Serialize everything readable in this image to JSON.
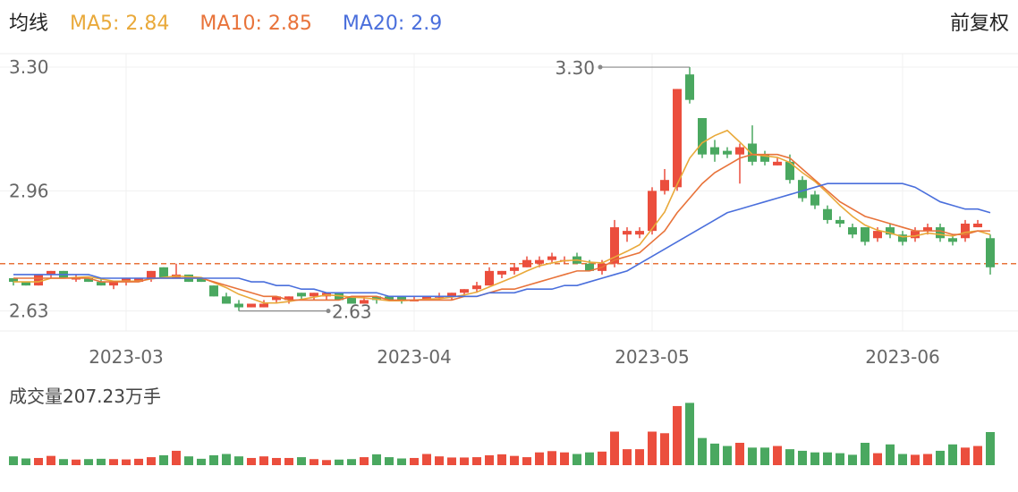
{
  "chart_data": {
    "type": "candlestick",
    "header": "均线",
    "adjust_label": "前复权",
    "ylim": [
      2.575,
      3.337
    ],
    "yticks": [
      {
        "value": 3.3,
        "label": "3.30"
      },
      2.96,
      2.63
    ],
    "grid": true,
    "up_color": "#eb4e3d",
    "down_color": "#4aa860",
    "categories": [
      null,
      null,
      null,
      null,
      null,
      null,
      null,
      null,
      null,
      "2023-03",
      null,
      null,
      null,
      null,
      null,
      null,
      null,
      null,
      null,
      null,
      null,
      null,
      null,
      null,
      null,
      null,
      null,
      null,
      null,
      null,
      null,
      null,
      "2023-04",
      null,
      null,
      null,
      null,
      null,
      null,
      null,
      null,
      null,
      null,
      null,
      null,
      null,
      null,
      null,
      null,
      null,
      null,
      "2023-05",
      null,
      null,
      null,
      null,
      null,
      null,
      null,
      null,
      null,
      null,
      null,
      null,
      null,
      null,
      null,
      null,
      null,
      null,
      null,
      "2023-06",
      null,
      null,
      null,
      null,
      null,
      null,
      null
    ],
    "open": [
      2.72,
      2.71,
      2.7,
      2.73,
      2.74,
      2.72,
      2.72,
      2.71,
      2.7,
      2.71,
      2.71,
      2.72,
      2.75,
      2.72,
      2.73,
      2.72,
      2.7,
      2.67,
      2.65,
      2.64,
      2.64,
      2.66,
      2.66,
      2.68,
      2.67,
      2.67,
      2.68,
      2.67,
      2.65,
      2.67,
      2.67,
      2.67,
      2.66,
      2.66,
      2.67,
      2.67,
      2.68,
      2.69,
      2.7,
      2.73,
      2.74,
      2.75,
      2.76,
      2.77,
      2.77,
      2.78,
      2.76,
      2.74,
      2.76,
      2.84,
      2.84,
      2.85,
      2.96,
      2.97,
      3.28,
      3.16,
      3.08,
      3.07,
      3.06,
      3.09,
      3.06,
      3.03,
      3.04,
      2.99,
      2.95,
      2.91,
      2.88,
      2.86,
      2.86,
      2.83,
      2.86,
      2.84,
      2.83,
      2.85,
      2.86,
      2.83,
      2.83,
      2.86,
      2.83
    ],
    "high": [
      2.72,
      2.71,
      2.73,
      2.74,
      2.74,
      2.73,
      2.72,
      2.72,
      2.71,
      2.72,
      2.72,
      2.74,
      2.75,
      2.76,
      2.73,
      2.72,
      2.7,
      2.68,
      2.66,
      2.65,
      2.66,
      2.67,
      2.67,
      2.68,
      2.68,
      2.68,
      2.68,
      2.67,
      2.67,
      2.67,
      2.67,
      2.67,
      2.67,
      2.67,
      2.68,
      2.68,
      2.69,
      2.71,
      2.75,
      2.74,
      2.76,
      2.78,
      2.78,
      2.79,
      2.78,
      2.79,
      2.77,
      2.77,
      2.88,
      2.86,
      2.86,
      2.97,
      3.02,
      3.24,
      3.3,
      3.16,
      3.1,
      3.08,
      3.09,
      3.14,
      3.07,
      3.05,
      3.06,
      3.0,
      2.96,
      2.92,
      2.89,
      2.87,
      2.86,
      2.86,
      2.87,
      2.85,
      2.86,
      2.87,
      2.87,
      2.84,
      2.88,
      2.88,
      2.84
    ],
    "low": [
      2.7,
      2.7,
      2.7,
      2.72,
      2.72,
      2.71,
      2.71,
      2.7,
      2.69,
      2.7,
      2.71,
      2.71,
      2.72,
      2.72,
      2.71,
      2.71,
      2.67,
      2.65,
      2.63,
      2.64,
      2.64,
      2.65,
      2.65,
      2.66,
      2.66,
      2.66,
      2.66,
      2.65,
      2.65,
      2.65,
      2.66,
      2.65,
      2.66,
      2.66,
      2.66,
      2.66,
      2.67,
      2.68,
      2.7,
      2.72,
      2.73,
      2.75,
      2.75,
      2.76,
      2.76,
      2.76,
      2.74,
      2.73,
      2.75,
      2.82,
      2.83,
      2.84,
      2.95,
      2.96,
      3.2,
      3.05,
      3.04,
      3.05,
      2.98,
      3.03,
      3.03,
      3.03,
      2.98,
      2.93,
      2.91,
      2.87,
      2.86,
      2.83,
      2.81,
      2.82,
      2.83,
      2.81,
      2.82,
      2.84,
      2.82,
      2.81,
      2.82,
      2.86,
      2.73
    ],
    "close": [
      2.71,
      2.7,
      2.73,
      2.74,
      2.72,
      2.72,
      2.71,
      2.7,
      2.71,
      2.72,
      2.72,
      2.74,
      2.72,
      2.73,
      2.71,
      2.71,
      2.67,
      2.65,
      2.64,
      2.65,
      2.65,
      2.67,
      2.67,
      2.67,
      2.68,
      2.68,
      2.66,
      2.65,
      2.66,
      2.66,
      2.66,
      2.66,
      2.66,
      2.67,
      2.67,
      2.68,
      2.69,
      2.7,
      2.74,
      2.74,
      2.75,
      2.77,
      2.77,
      2.78,
      2.77,
      2.76,
      2.74,
      2.76,
      2.86,
      2.85,
      2.85,
      2.96,
      2.99,
      3.24,
      3.21,
      3.06,
      3.06,
      3.06,
      3.08,
      3.04,
      3.04,
      3.04,
      2.99,
      2.94,
      2.92,
      2.88,
      2.87,
      2.84,
      2.82,
      2.85,
      2.84,
      2.82,
      2.85,
      2.86,
      2.83,
      2.82,
      2.87,
      2.87,
      2.75
    ],
    "series": [
      {
        "name": "MA5",
        "legend_label": "MA5: 2.84",
        "color": "#e9a93a",
        "values": [
          2.71,
          2.71,
          2.71,
          2.72,
          2.72,
          2.722,
          2.724,
          2.718,
          2.712,
          2.712,
          2.712,
          2.718,
          2.722,
          2.726,
          2.724,
          2.722,
          2.708,
          2.694,
          2.676,
          2.664,
          2.652,
          2.652,
          2.656,
          2.662,
          2.668,
          2.674,
          2.672,
          2.668,
          2.666,
          2.662,
          2.658,
          2.658,
          2.66,
          2.662,
          2.664,
          2.668,
          2.674,
          2.682,
          2.696,
          2.71,
          2.724,
          2.74,
          2.754,
          2.762,
          2.768,
          2.77,
          2.764,
          2.762,
          2.778,
          2.794,
          2.812,
          2.856,
          2.902,
          2.978,
          3.05,
          3.092,
          3.112,
          3.126,
          3.094,
          3.06,
          3.056,
          3.052,
          3.038,
          3.01,
          2.986,
          2.954,
          2.92,
          2.89,
          2.866,
          2.852,
          2.844,
          2.834,
          2.836,
          2.844,
          2.84,
          2.836,
          2.846,
          2.85,
          2.84
        ]
      },
      {
        "name": "MA10",
        "legend_label": "MA10: 2.85",
        "color": "#e8733a",
        "values": [
          2.72,
          2.72,
          2.72,
          2.72,
          2.72,
          2.72,
          2.72,
          2.71,
          2.71,
          2.71,
          2.71,
          2.72,
          2.72,
          2.72,
          2.72,
          2.72,
          2.71,
          2.7,
          2.69,
          2.68,
          2.67,
          2.67,
          2.66,
          2.66,
          2.66,
          2.66,
          2.66,
          2.67,
          2.67,
          2.67,
          2.66,
          2.66,
          2.66,
          2.66,
          2.66,
          2.66,
          2.67,
          2.67,
          2.68,
          2.69,
          2.69,
          2.7,
          2.71,
          2.72,
          2.73,
          2.74,
          2.74,
          2.75,
          2.77,
          2.78,
          2.79,
          2.82,
          2.85,
          2.9,
          2.94,
          2.98,
          3.01,
          3.03,
          3.05,
          3.06,
          3.06,
          3.06,
          3.05,
          3.02,
          2.99,
          2.96,
          2.93,
          2.91,
          2.89,
          2.88,
          2.87,
          2.86,
          2.85,
          2.85,
          2.85,
          2.84,
          2.84,
          2.85,
          2.85
        ]
      },
      {
        "name": "MA20",
        "legend_label": "MA20: 2.9",
        "color": "#4a6fdc",
        "values": [
          2.73,
          2.73,
          2.73,
          2.73,
          2.73,
          2.73,
          2.73,
          2.72,
          2.72,
          2.72,
          2.72,
          2.72,
          2.72,
          2.72,
          2.72,
          2.72,
          2.72,
          2.72,
          2.72,
          2.71,
          2.71,
          2.7,
          2.7,
          2.69,
          2.69,
          2.68,
          2.68,
          2.68,
          2.68,
          2.68,
          2.67,
          2.67,
          2.67,
          2.67,
          2.67,
          2.67,
          2.67,
          2.67,
          2.68,
          2.68,
          2.68,
          2.69,
          2.69,
          2.69,
          2.7,
          2.7,
          2.71,
          2.72,
          2.73,
          2.74,
          2.76,
          2.78,
          2.8,
          2.82,
          2.84,
          2.86,
          2.88,
          2.9,
          2.91,
          2.92,
          2.93,
          2.94,
          2.95,
          2.96,
          2.97,
          2.98,
          2.98,
          2.98,
          2.98,
          2.98,
          2.98,
          2.98,
          2.97,
          2.95,
          2.93,
          2.92,
          2.91,
          2.91,
          2.9
        ]
      }
    ],
    "ref_line": {
      "value": 2.76,
      "color": "#e8733a"
    },
    "annotations": [
      {
        "text": "3.30",
        "value": 3.3,
        "at": "high"
      },
      {
        "text": "2.63",
        "value": 2.63,
        "at": "low"
      }
    ],
    "volume_title": "成交量207.23万手",
    "vlim": [
      0,
      420
    ],
    "volume": [
      55,
      42,
      45,
      58,
      38,
      35,
      38,
      40,
      38,
      36,
      40,
      50,
      62,
      90,
      55,
      40,
      62,
      70,
      55,
      45,
      55,
      45,
      45,
      50,
      38,
      32,
      35,
      38,
      50,
      68,
      50,
      42,
      45,
      70,
      55,
      48,
      48,
      50,
      62,
      68,
      58,
      50,
      80,
      88,
      80,
      70,
      80,
      85,
      210,
      100,
      100,
      210,
      200,
      370,
      390,
      170,
      135,
      120,
      140,
      110,
      110,
      120,
      100,
      90,
      80,
      80,
      75,
      65,
      140,
      75,
      130,
      70,
      65,
      70,
      90,
      130,
      110,
      120,
      207.23
    ]
  }
}
